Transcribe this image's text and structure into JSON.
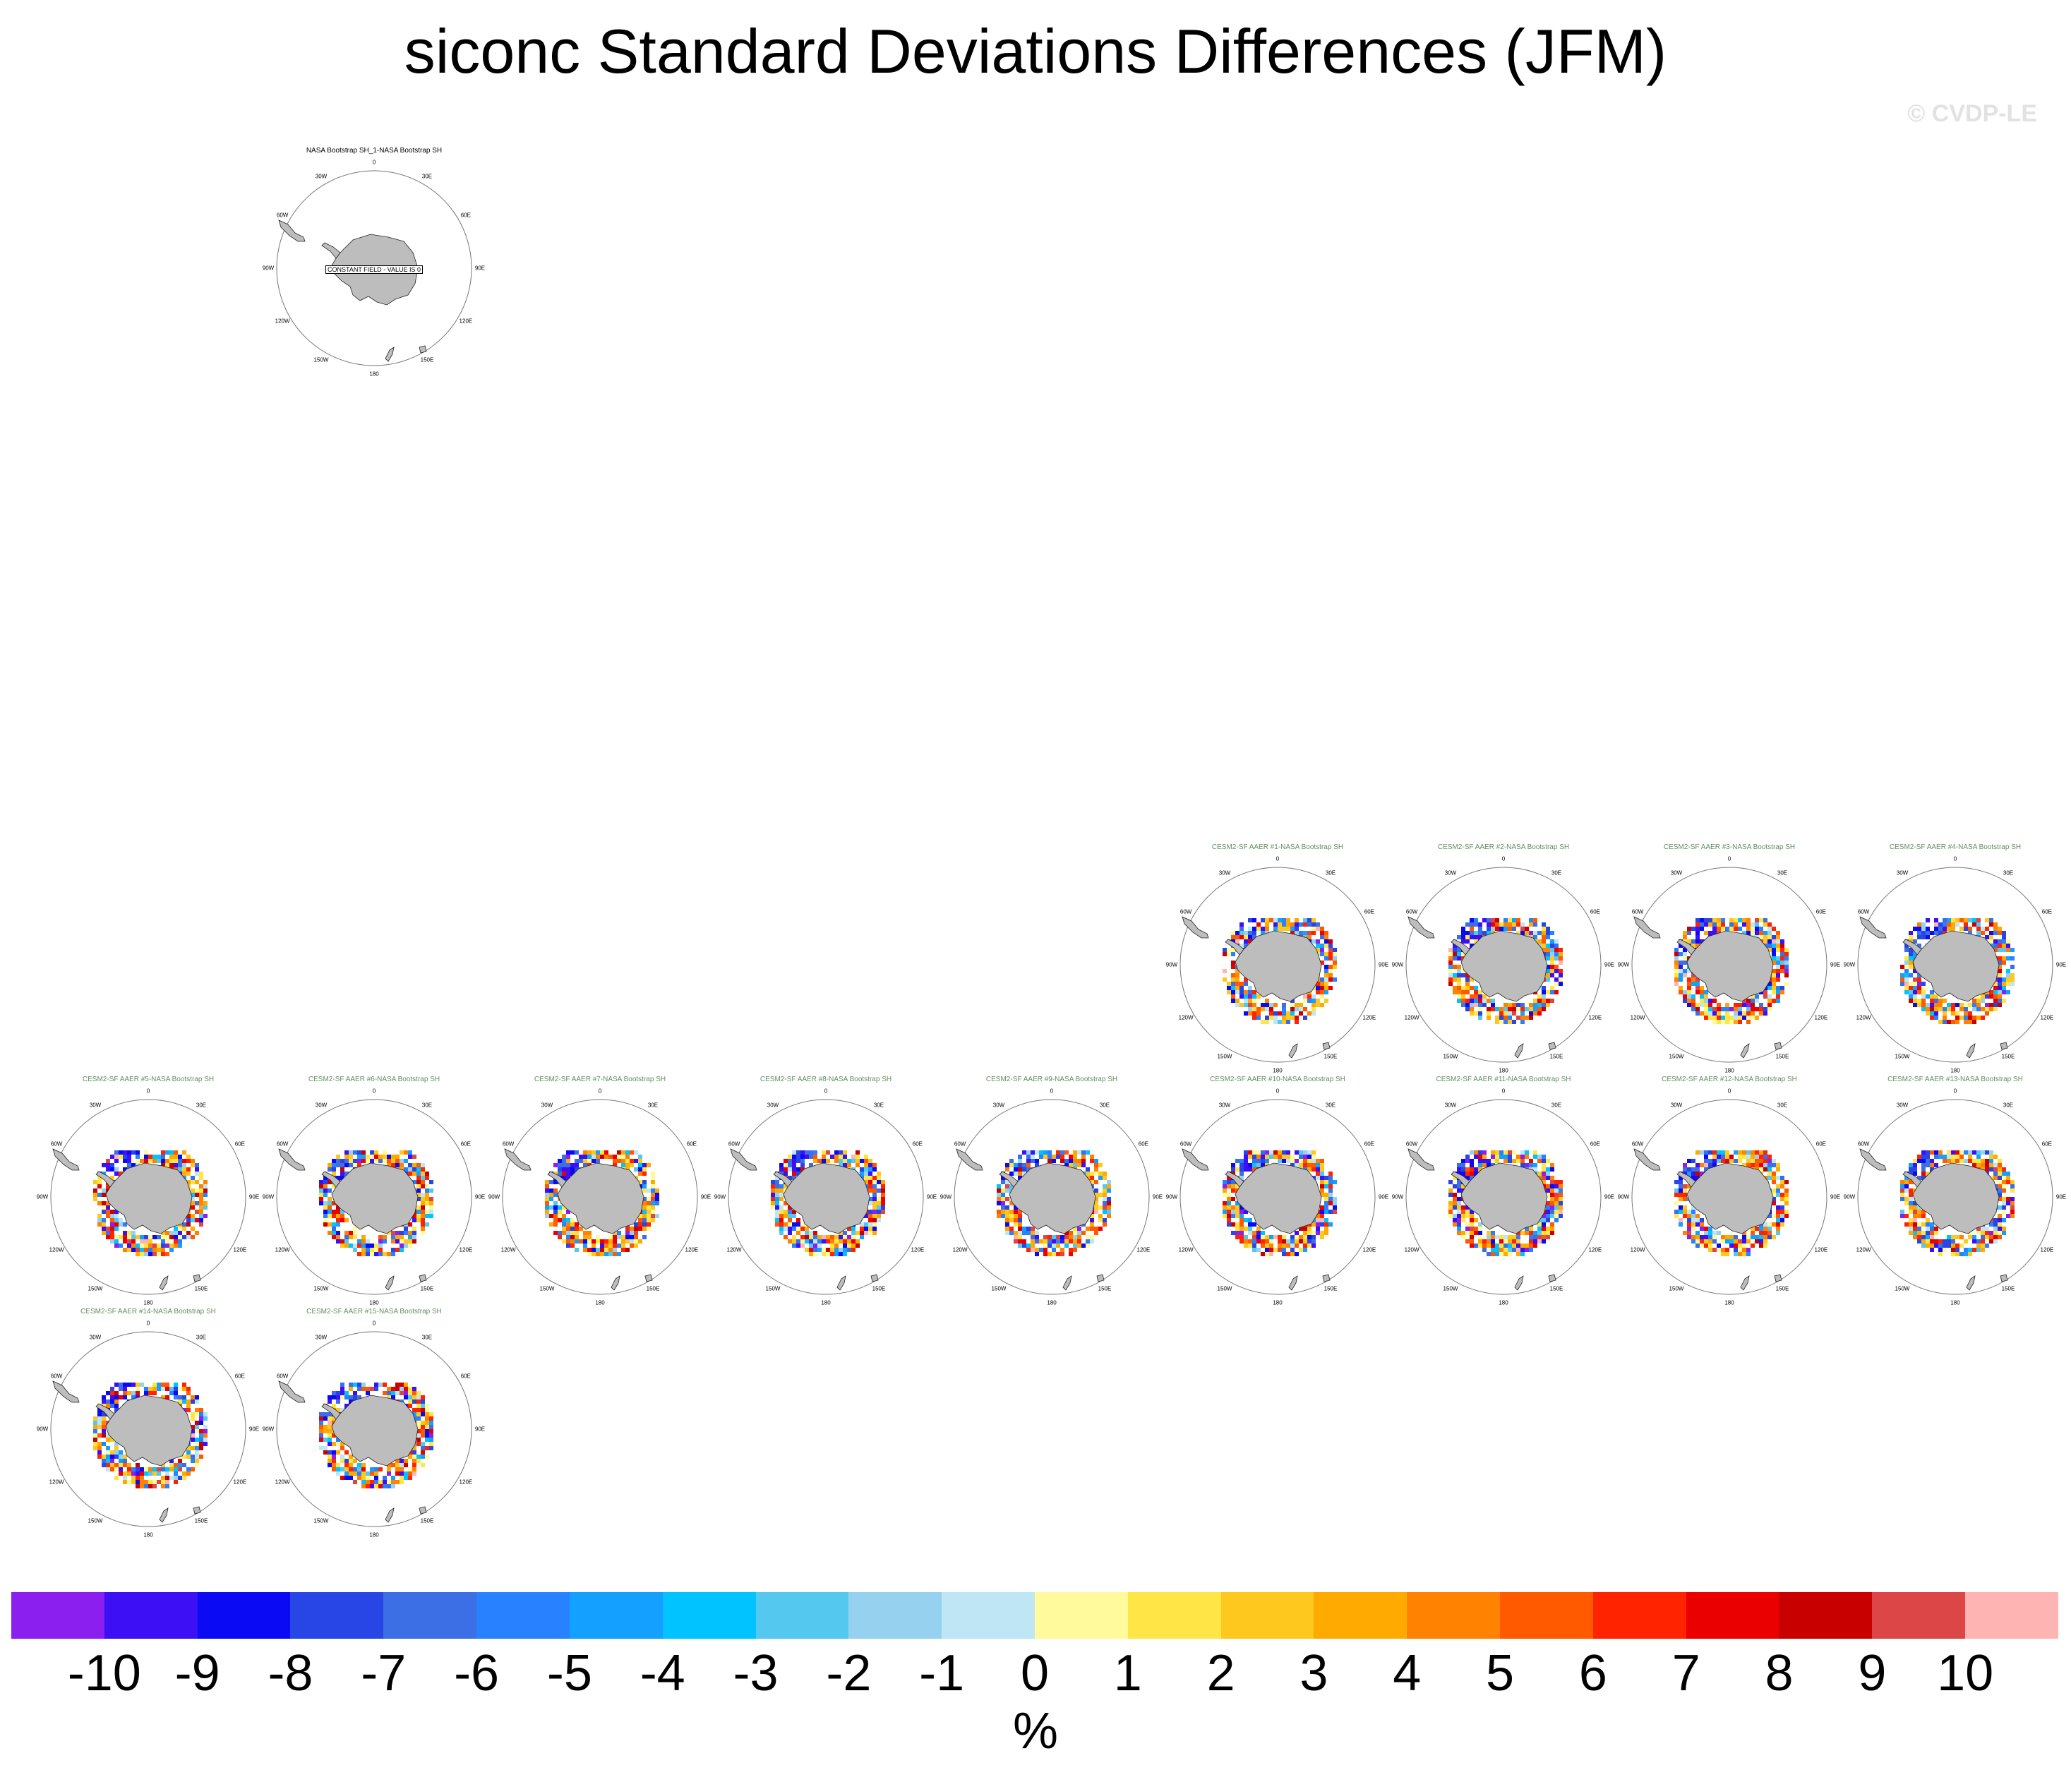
{
  "title": "siconc Standard Deviations Differences (JFM)",
  "watermark": "© CVDP-LE",
  "chart_data": {
    "type": "heatmap",
    "variable": "siconc",
    "season": "JFM",
    "projection": "polar stereographic (Southern Hemisphere)",
    "longitude_labels": [
      "0",
      "30E",
      "60E",
      "90E",
      "120E",
      "150E",
      "180",
      "150W",
      "120W",
      "90W",
      "60W",
      "30W"
    ],
    "panels": [
      {
        "name": "NASA Bootstrap SH_1-NASA Bootstrap SH",
        "note": "CONSTANT FIELD - VALUE IS 0",
        "observation": true
      },
      {
        "name": "CESM2-SF AAER #1-NASA Bootstrap SH"
      },
      {
        "name": "CESM2-SF AAER #2-NASA Bootstrap SH"
      },
      {
        "name": "CESM2-SF AAER #3-NASA Bootstrap SH"
      },
      {
        "name": "CESM2-SF AAER #4-NASA Bootstrap SH"
      },
      {
        "name": "CESM2-SF AAER #5-NASA Bootstrap SH"
      },
      {
        "name": "CESM2-SF AAER #6-NASA Bootstrap SH"
      },
      {
        "name": "CESM2-SF AAER #7-NASA Bootstrap SH"
      },
      {
        "name": "CESM2-SF AAER #8-NASA Bootstrap SH"
      },
      {
        "name": "CESM2-SF AAER #9-NASA Bootstrap SH"
      },
      {
        "name": "CESM2-SF AAER #10-NASA Bootstrap SH"
      },
      {
        "name": "CESM2-SF AAER #11-NASA Bootstrap SH"
      },
      {
        "name": "CESM2-SF AAER #12-NASA Bootstrap SH"
      },
      {
        "name": "CESM2-SF AAER #13-NASA Bootstrap SH"
      },
      {
        "name": "CESM2-SF AAER #14-NASA Bootstrap SH"
      },
      {
        "name": "CESM2-SF AAER #15-NASA Bootstrap SH"
      }
    ],
    "colorbar": {
      "unit": "%",
      "ticks": [
        "-10",
        "-9",
        "-8",
        "-7",
        "-6",
        "-5",
        "-4",
        "-3",
        "-2",
        "-1",
        "0",
        "1",
        "2",
        "3",
        "4",
        "5",
        "6",
        "7",
        "8",
        "9",
        "10"
      ],
      "colors": [
        "#8a1ff0",
        "#3c0ff5",
        "#0a0af5",
        "#2846e6",
        "#3c6ee6",
        "#2882ff",
        "#14a0ff",
        "#00c3ff",
        "#55c8f0",
        "#96d2f0",
        "#bee6f5",
        "#fffa9b",
        "#ffe646",
        "#ffc81e",
        "#ffaa00",
        "#ff8200",
        "#ff5a00",
        "#ff2300",
        "#eb0000",
        "#c80000",
        "#dc4646",
        "#ffb4b4"
      ]
    }
  }
}
